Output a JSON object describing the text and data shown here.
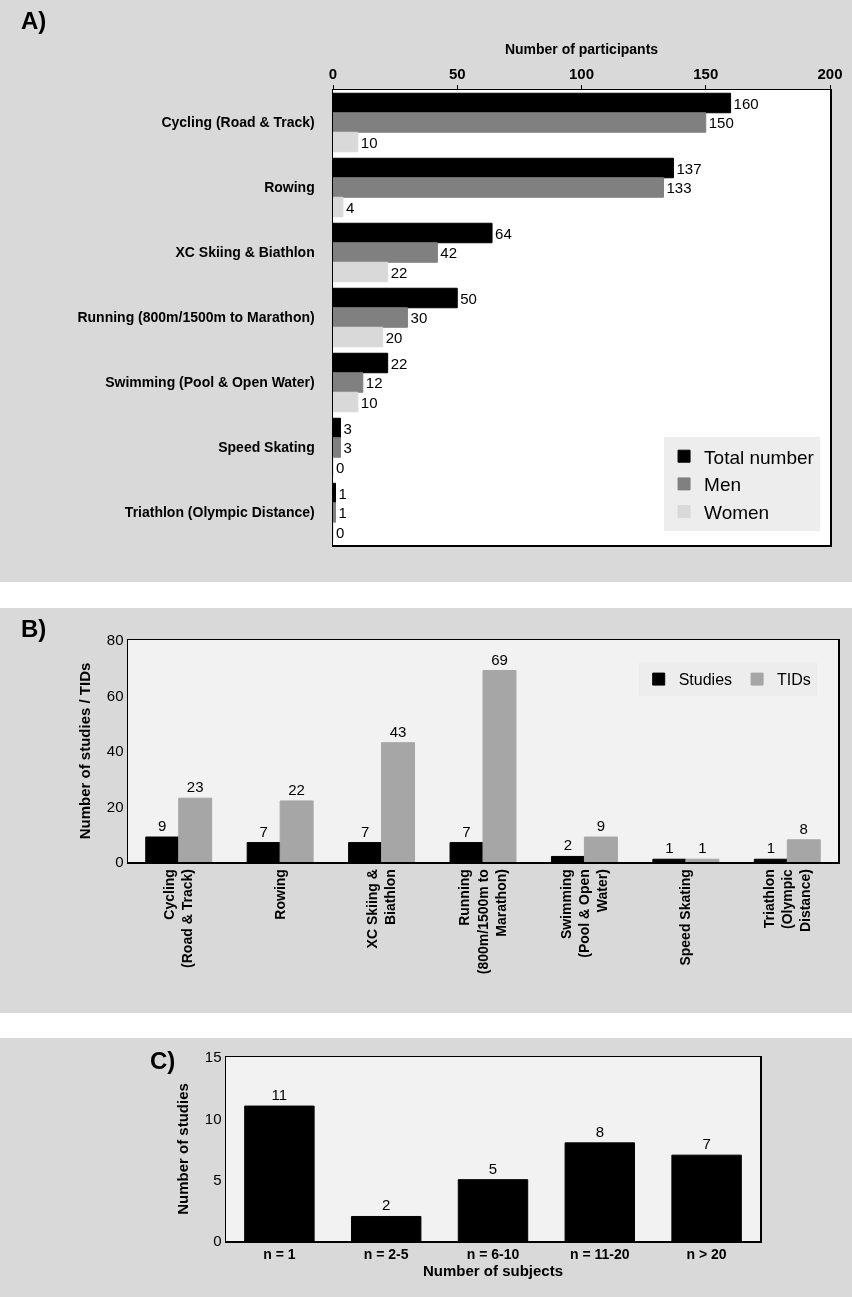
{
  "chart_data": [
    {
      "type": "bar",
      "title": "A)",
      "orientation": "horizontal",
      "xlabel": "Number of participants",
      "categories": [
        "Cycling (Road & Track)",
        "Rowing",
        "XC Skiing & Biathlon",
        "Running (800m/1500m to Marathon)",
        "Swimming (Pool & Open Water)",
        "Speed Skating",
        "Triathlon (Olympic Distance)"
      ],
      "series": [
        {
          "name": "Total number",
          "color": "#000000",
          "values": [
            160,
            137,
            64,
            50,
            22,
            3,
            1
          ]
        },
        {
          "name": "Men",
          "color": "#808080",
          "values": [
            150,
            133,
            42,
            30,
            12,
            3,
            1
          ]
        },
        {
          "name": "Women",
          "color": "#d9d9d9",
          "values": [
            10,
            4,
            22,
            20,
            10,
            0,
            0
          ]
        }
      ],
      "xlim": [
        0,
        200
      ],
      "xticks": [
        0,
        50,
        100,
        150,
        200
      ],
      "data_labels": true,
      "legend": "bottom right",
      "grid": false
    },
    {
      "type": "bar",
      "title": "B)",
      "ylabel": "Number of studies / TIDs",
      "categories": [
        "Cycling (Road & Track)",
        "Rowing",
        "XC Skiing & Biathlon",
        "Running (800m/1500m to Marathon)",
        "Swimming (Pool & Open Water)",
        "Speed Skating",
        "Triathlon (Olympic Distance)"
      ],
      "series": [
        {
          "name": "Studies",
          "color": "#000000",
          "values": [
            9,
            7,
            7,
            7,
            2,
            1,
            1
          ]
        },
        {
          "name": "TIDs",
          "color": "#a6a6a6",
          "values": [
            23,
            22,
            43,
            69,
            9,
            1,
            8
          ]
        }
      ],
      "ylim": [
        0,
        80
      ],
      "yticks": [
        0,
        20,
        40,
        60,
        80
      ],
      "data_labels": true,
      "legend": "top right",
      "grid": false
    },
    {
      "type": "bar",
      "title": "C)",
      "xlabel": "Number of subjects",
      "ylabel": "Number of studies",
      "categories": [
        "n = 1",
        "n = 2-5",
        "n = 6-10",
        "n = 11-20",
        "n > 20"
      ],
      "series": [
        {
          "color": "#000000",
          "values": [
            11,
            2,
            5,
            8,
            7
          ]
        }
      ],
      "ylim": [
        0,
        15
      ],
      "yticks": [
        0,
        5,
        10,
        15
      ],
      "data_labels": true,
      "legend": false,
      "grid": false
    }
  ]
}
